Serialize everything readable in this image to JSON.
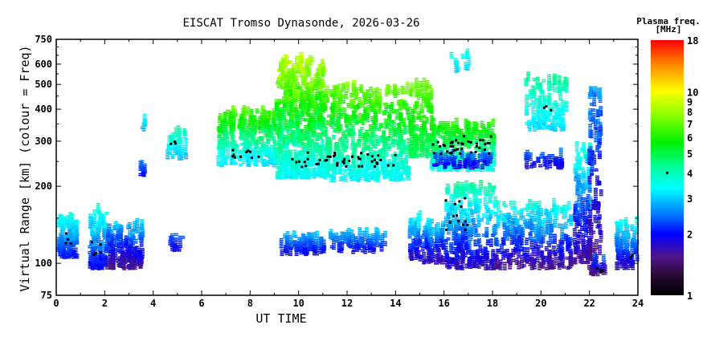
{
  "chart_data": {
    "type": "scatter",
    "title": "EISCAT Tromso Dynasonde, 2026-03-26",
    "xlabel": "UT TIME",
    "ylabel": "Virtual Range [km] (colour = Freq)",
    "xlim": [
      0,
      24
    ],
    "ylim": [
      75,
      750
    ],
    "yscale": "log",
    "x_ticks": [
      "0",
      "2",
      "4",
      "6",
      "8",
      "10",
      "12",
      "14",
      "16",
      "18",
      "20",
      "22",
      "24"
    ],
    "y_ticks": [
      75,
      100,
      200,
      300,
      400,
      500,
      600,
      750
    ],
    "y_tick_labels": [
      "75",
      "100",
      "200",
      "300",
      "400",
      "500",
      "600",
      "750"
    ],
    "colorbar": {
      "title_line1": "Plasma freq.",
      "title_line2": "[MHz]",
      "range": [
        1,
        18
      ],
      "ticks": [
        1,
        2,
        3,
        4,
        5,
        6,
        7,
        8,
        9,
        10,
        18
      ],
      "tick_labels": [
        "1",
        "2",
        "3",
        "4",
        "5",
        "6",
        "7",
        "8",
        "9",
        "10",
        "18"
      ],
      "marker_value": 4
    },
    "echo_clusters": [
      {
        "t": [
          0.0,
          0.8
        ],
        "h": [
          105,
          150
        ],
        "f": [
          2.0,
          3.5
        ],
        "n": 110
      },
      {
        "t": [
          1.3,
          2.0
        ],
        "h": [
          95,
          160
        ],
        "f": [
          1.9,
          3.6
        ],
        "n": 110
      },
      {
        "t": [
          2.0,
          3.5
        ],
        "h": [
          95,
          140
        ],
        "f": [
          1.5,
          2.8
        ],
        "n": 170
      },
      {
        "t": [
          3.35,
          3.6
        ],
        "h": [
          220,
          240
        ],
        "f": [
          2.0,
          2.4
        ],
        "n": 10
      },
      {
        "t": [
          3.4,
          3.6
        ],
        "h": [
          330,
          355
        ],
        "f": [
          2.8,
          3.2
        ],
        "n": 6
      },
      {
        "t": [
          4.6,
          5.2
        ],
        "h": [
          112,
          130
        ],
        "f": [
          1.9,
          2.4
        ],
        "n": 14
      },
      {
        "t": [
          4.5,
          5.3
        ],
        "h": [
          255,
          325
        ],
        "f": [
          2.8,
          4.0
        ],
        "n": 40
      },
      {
        "t": [
          6.6,
          9.0
        ],
        "h": [
          240,
          390
        ],
        "f": [
          3.0,
          6.5
        ],
        "n": 260
      },
      {
        "t": [
          9.0,
          11.0
        ],
        "h": [
          215,
          620
        ],
        "f": [
          3.2,
          8.5
        ],
        "n": 520
      },
      {
        "t": [
          11.0,
          14.5
        ],
        "h": [
          210,
          480
        ],
        "f": [
          3.2,
          7.0
        ],
        "n": 520
      },
      {
        "t": [
          9.2,
          11.0
        ],
        "h": [
          108,
          128
        ],
        "f": [
          1.9,
          2.8
        ],
        "n": 90
      },
      {
        "t": [
          11.2,
          13.5
        ],
        "h": [
          110,
          128
        ],
        "f": [
          1.9,
          2.7
        ],
        "n": 80
      },
      {
        "t": [
          14.5,
          15.5
        ],
        "h": [
          260,
          500
        ],
        "f": [
          4.5,
          7.0
        ],
        "n": 120
      },
      {
        "t": [
          15.4,
          18.0
        ],
        "h": [
          230,
          345
        ],
        "f": [
          3.4,
          6.0
        ],
        "n": 260
      },
      {
        "t": [
          15.5,
          17.9
        ],
        "h": [
          235,
          262
        ],
        "f": [
          1.8,
          2.4
        ],
        "n": 60
      },
      {
        "t": [
          16.2,
          17.0
        ],
        "h": [
          560,
          650
        ],
        "f": [
          3.0,
          3.4
        ],
        "n": 12
      },
      {
        "t": [
          14.5,
          16.0
        ],
        "h": [
          100,
          150
        ],
        "f": [
          1.6,
          3.4
        ],
        "n": 140
      },
      {
        "t": [
          16.0,
          18.0
        ],
        "h": [
          95,
          200
        ],
        "f": [
          1.6,
          4.2
        ],
        "n": 280
      },
      {
        "t": [
          18.0,
          21.2
        ],
        "h": [
          95,
          170
        ],
        "f": [
          1.5,
          3.6
        ],
        "n": 300
      },
      {
        "t": [
          19.3,
          21.0
        ],
        "h": [
          330,
          530
        ],
        "f": [
          3.0,
          4.2
        ],
        "n": 120
      },
      {
        "t": [
          19.3,
          20.8
        ],
        "h": [
          235,
          262
        ],
        "f": [
          1.8,
          2.3
        ],
        "n": 40
      },
      {
        "t": [
          21.3,
          22.0
        ],
        "h": [
          100,
          280
        ],
        "f": [
          1.5,
          3.6
        ],
        "n": 140
      },
      {
        "t": [
          21.9,
          22.4
        ],
        "h": [
          90,
          470
        ],
        "f": [
          1.4,
          2.6
        ],
        "n": 120
      },
      {
        "t": [
          22.0,
          22.6
        ],
        "h": [
          90,
          105
        ],
        "f": [
          1.5,
          2.5
        ],
        "n": 20
      },
      {
        "t": [
          23.0,
          23.9
        ],
        "h": [
          95,
          145
        ],
        "f": [
          1.7,
          3.5
        ],
        "n": 90
      }
    ],
    "hmf_markers": [
      {
        "t": [
          0.3,
          0.7
        ],
        "h": [
          120,
          135
        ],
        "n": 4
      },
      {
        "t": [
          1.4,
          1.8
        ],
        "h": [
          105,
          130
        ],
        "n": 5
      },
      {
        "t": [
          4.6,
          4.9
        ],
        "h": [
          280,
          320
        ],
        "n": 3
      },
      {
        "t": [
          7.0,
          8.6
        ],
        "h": [
          255,
          285
        ],
        "n": 10
      },
      {
        "t": [
          9.4,
          14.0
        ],
        "h": [
          240,
          275
        ],
        "n": 45
      },
      {
        "t": [
          15.4,
          17.9
        ],
        "h": [
          270,
          320
        ],
        "n": 40
      },
      {
        "t": [
          16.0,
          17.0
        ],
        "h": [
          135,
          185
        ],
        "n": 14
      },
      {
        "t": [
          19.5,
          20.5
        ],
        "h": [
          370,
          420
        ],
        "n": 3
      },
      {
        "t": [
          22.1,
          22.6
        ],
        "h": [
          92,
          97
        ],
        "n": 4
      },
      {
        "t": [
          23.6,
          23.9
        ],
        "h": [
          105,
          110
        ],
        "n": 2
      }
    ]
  }
}
